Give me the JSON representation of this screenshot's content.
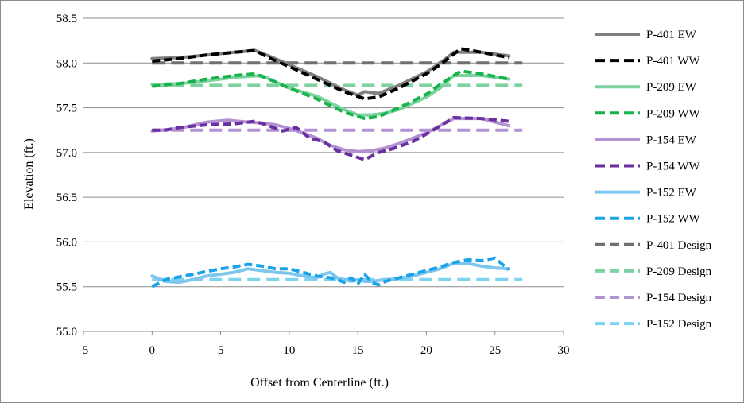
{
  "chart_data": {
    "type": "line",
    "title": "",
    "xlabel": "Offset from Centerline (ft.)",
    "ylabel": "Elevation (ft.)",
    "xlim": [
      -5,
      30
    ],
    "ylim": [
      55.0,
      58.5
    ],
    "xticks": [
      -5,
      0,
      5,
      10,
      15,
      20,
      25,
      30
    ],
    "yticks": [
      55.0,
      55.5,
      56.0,
      56.5,
      57.0,
      57.5,
      58.0,
      58.5
    ],
    "ytick_labels": [
      "55.0",
      "55.5",
      "56.0",
      "56.5",
      "57.0",
      "57.5",
      "58.0",
      "58.5"
    ],
    "grid": "horizontal",
    "legend_position": "right",
    "series": [
      {
        "name": "P-401 EW",
        "color": "#808080",
        "dash": "solid",
        "x": [
          0,
          2,
          4,
          6,
          7.5,
          8.5,
          10,
          12,
          14,
          15,
          15.5,
          16.5,
          18,
          20,
          21,
          22,
          24,
          26
        ],
        "y": [
          58.05,
          58.06,
          58.09,
          58.12,
          58.14,
          58.08,
          57.98,
          57.85,
          57.7,
          57.64,
          57.68,
          57.66,
          57.75,
          57.9,
          58.0,
          58.12,
          58.12,
          58.08
        ]
      },
      {
        "name": "P-401 WW",
        "color": "#000000",
        "dash": "dashed",
        "x": [
          0,
          2,
          4,
          6,
          7.5,
          8.5,
          10,
          12,
          14,
          15.5,
          16.5,
          18,
          20,
          21,
          22.5,
          24,
          26
        ],
        "y": [
          58.02,
          58.05,
          58.09,
          58.12,
          58.14,
          58.06,
          57.96,
          57.82,
          57.68,
          57.6,
          57.62,
          57.72,
          57.88,
          57.98,
          58.16,
          58.12,
          58.06
        ]
      },
      {
        "name": "P-209 EW",
        "color": "#7dd3a0",
        "dash": "solid",
        "x": [
          0,
          2,
          4,
          6,
          8,
          10,
          12,
          14,
          15,
          16,
          17,
          18,
          20,
          21,
          22,
          24,
          26
        ],
        "y": [
          57.76,
          57.77,
          57.8,
          57.84,
          57.86,
          57.72,
          57.63,
          57.48,
          57.42,
          57.42,
          57.44,
          57.48,
          57.62,
          57.72,
          57.86,
          57.86,
          57.82
        ]
      },
      {
        "name": "P-209 WW",
        "color": "#16b34a",
        "dash": "dashed",
        "x": [
          0,
          2,
          4,
          6,
          7.5,
          8.5,
          10,
          12,
          14,
          15.5,
          16.5,
          18,
          20,
          21,
          22.5,
          24,
          26
        ],
        "y": [
          57.74,
          57.77,
          57.82,
          57.86,
          57.88,
          57.82,
          57.72,
          57.6,
          57.45,
          57.38,
          57.4,
          57.5,
          57.65,
          57.76,
          57.91,
          57.88,
          57.82
        ]
      },
      {
        "name": "P-154 EW",
        "color": "#b392d2",
        "dash": "solid",
        "x": [
          0,
          2,
          4,
          5.5,
          7,
          8,
          9,
          10,
          11,
          12,
          13,
          14,
          15,
          16,
          17,
          18,
          20,
          21,
          22,
          24,
          26
        ],
        "y": [
          57.24,
          57.27,
          57.34,
          57.36,
          57.34,
          57.33,
          57.31,
          57.27,
          57.22,
          57.16,
          57.08,
          57.03,
          57.01,
          57.02,
          57.05,
          57.1,
          57.22,
          57.3,
          57.38,
          57.38,
          57.3
        ]
      },
      {
        "name": "P-154 WW",
        "color": "#6a2fa0",
        "dash": "dashed",
        "x": [
          0,
          1,
          2,
          4,
          6,
          7.5,
          8.5,
          9.5,
          10.5,
          11.5,
          12.5,
          13.5,
          14.5,
          15.5,
          16.5,
          17.5,
          19,
          20.5,
          22,
          24,
          26
        ],
        "y": [
          57.25,
          57.25,
          57.28,
          57.31,
          57.32,
          57.35,
          57.3,
          57.24,
          57.28,
          57.16,
          57.12,
          57.02,
          56.97,
          56.92,
          57.0,
          57.04,
          57.12,
          57.25,
          57.39,
          57.38,
          57.35
        ]
      },
      {
        "name": "P-152 EW",
        "color": "#7dc6ee",
        "dash": "solid",
        "x": [
          0,
          1,
          2,
          3,
          4,
          5,
          6,
          7,
          8,
          9,
          10,
          11,
          12,
          12.5,
          13,
          13.5,
          14,
          14.5,
          15,
          15.5,
          16,
          17,
          18,
          19,
          20,
          21,
          22,
          23,
          24,
          25,
          26
        ],
        "y": [
          55.62,
          55.56,
          55.55,
          55.58,
          55.62,
          55.64,
          55.66,
          55.7,
          55.68,
          55.66,
          55.65,
          55.62,
          55.6,
          55.64,
          55.66,
          55.6,
          55.58,
          55.56,
          55.58,
          55.56,
          55.56,
          55.58,
          55.59,
          55.62,
          55.66,
          55.7,
          55.76,
          55.76,
          55.73,
          55.71,
          55.7
        ]
      },
      {
        "name": "P-152 WW",
        "color": "#1aa3e8",
        "dash": "dashed",
        "x": [
          0,
          1,
          2,
          3,
          4,
          5,
          6,
          7,
          8,
          9,
          10,
          11,
          12,
          13,
          13.5,
          14,
          14.5,
          15,
          15.5,
          16,
          16.5,
          17,
          18,
          19,
          20,
          21,
          22,
          23,
          24,
          25,
          26
        ],
        "y": [
          55.5,
          55.58,
          55.61,
          55.64,
          55.67,
          55.7,
          55.72,
          55.75,
          55.73,
          55.7,
          55.7,
          55.66,
          55.62,
          55.6,
          55.58,
          55.55,
          55.6,
          55.53,
          55.64,
          55.55,
          55.52,
          55.56,
          55.6,
          55.64,
          55.68,
          55.72,
          55.77,
          55.8,
          55.79,
          55.82,
          55.69
        ]
      },
      {
        "name": "P-401 Design",
        "color": "#707070",
        "dash": "longdash",
        "x": [
          0,
          27
        ],
        "y": [
          58.0,
          58.0
        ]
      },
      {
        "name": "P-209 Design",
        "color": "#7dd3a0",
        "dash": "longdash",
        "x": [
          0,
          27
        ],
        "y": [
          57.75,
          57.75
        ]
      },
      {
        "name": "P-154 Design",
        "color": "#b392d2",
        "dash": "longdash",
        "x": [
          0,
          27
        ],
        "y": [
          57.25,
          57.25
        ]
      },
      {
        "name": "P-152 Design",
        "color": "#7dd3f0",
        "dash": "longdash",
        "x": [
          0,
          27
        ],
        "y": [
          55.58,
          55.58
        ]
      }
    ]
  }
}
